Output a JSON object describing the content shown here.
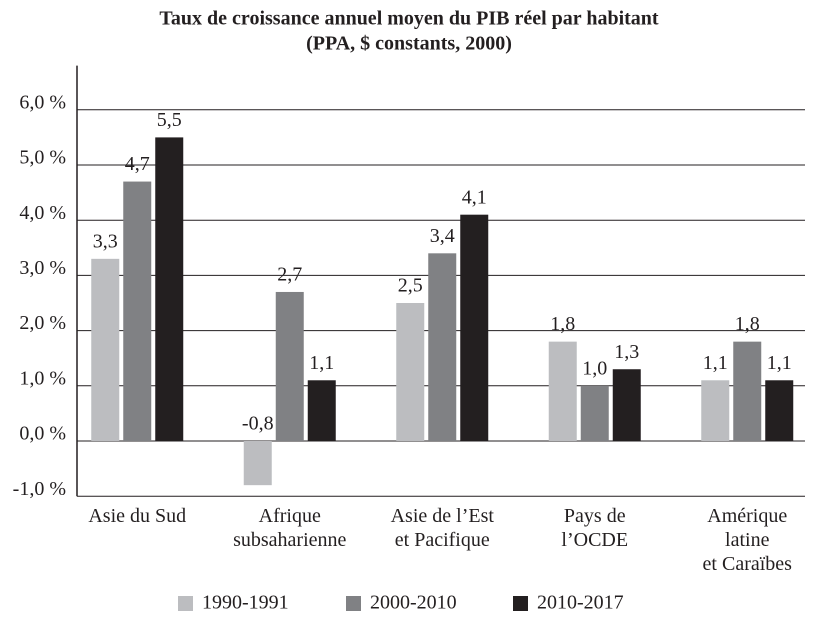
{
  "chart_data": {
    "type": "bar",
    "title": "Taux de croissance annuel moyen du PIB réel par habitant",
    "subtitle": "(PPA, $ constants, 2000)",
    "categories": [
      "Asie du Sud",
      "Afrique\nsubsaharienne",
      "Asie de l’Est\net Pacifique",
      "Pays de\nl’OCDE",
      "Amérique\nlatine\net Caraïbes"
    ],
    "series": [
      {
        "name": "1990-1991",
        "color": "#bcbdc0",
        "values": [
          3.3,
          -0.8,
          2.5,
          1.8,
          1.1
        ],
        "value_labels": [
          "3,3",
          "-0,8",
          "2,5",
          "1,8",
          "1,1"
        ]
      },
      {
        "name": "2000-2010",
        "color": "#808184",
        "values": [
          4.7,
          2.7,
          3.4,
          1.0,
          1.8
        ],
        "value_labels": [
          "4,7",
          "2,7",
          "3,4",
          "1,0",
          "1,8"
        ]
      },
      {
        "name": "2010-2017",
        "color": "#231f20",
        "values": [
          5.5,
          1.1,
          4.1,
          1.3,
          1.1
        ],
        "value_labels": [
          "5,5",
          "1,1",
          "4,1",
          "1,3",
          "1,1"
        ]
      }
    ],
    "ylim": [
      -1,
      6.8
    ],
    "yticks": [
      {
        "value": -1,
        "label": "-1,0 %"
      },
      {
        "value": 0,
        "label": "0,0 %"
      },
      {
        "value": 1,
        "label": "1,0 %"
      },
      {
        "value": 2,
        "label": "2,0 %"
      },
      {
        "value": 3,
        "label": "3,0 %"
      },
      {
        "value": 4,
        "label": "4,0 %"
      },
      {
        "value": 5,
        "label": "5,0 %"
      },
      {
        "value": 6,
        "label": "6,0 %"
      }
    ],
    "grid": true,
    "legend": "bottom"
  }
}
